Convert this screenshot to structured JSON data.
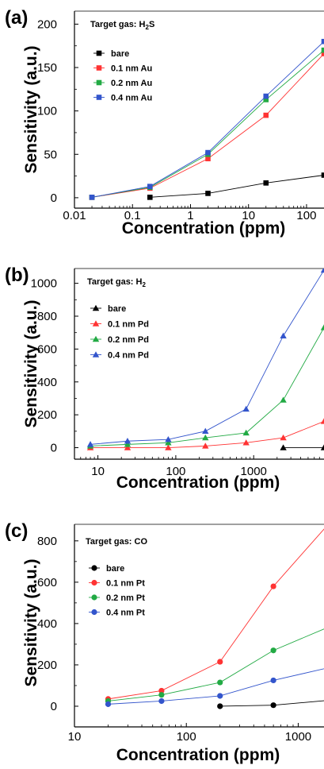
{
  "chart_data": [
    {
      "type": "line",
      "panel_label": "(a)",
      "legend_title": "Target gas: H2S",
      "legend_title_main": "Target gas: H",
      "legend_title_sub": "2",
      "legend_title_tail": "S",
      "xlabel": "Concentration (ppm)",
      "ylabel": "Sensitivity (a.u.)",
      "xscale": "log",
      "xlim": [
        0.01,
        200
      ],
      "ylim": [
        -12,
        215
      ],
      "xticks": [
        0.01,
        0.1,
        1,
        10,
        100
      ],
      "xtick_labels": [
        "0.01",
        "0.1",
        "1",
        "10",
        "100"
      ],
      "yticks": [
        0,
        50,
        100,
        150,
        200
      ],
      "ytick_labels": [
        "0",
        "50",
        "100",
        "150",
        "200"
      ],
      "marker": "square",
      "series": [
        {
          "name": "bare",
          "color": "#000000",
          "x": [
            0.2,
            2,
            20,
            200
          ],
          "y": [
            0.5,
            5,
            17,
            26
          ]
        },
        {
          "name": "0.1 nm Au",
          "color": "#ff3333",
          "x": [
            0.02,
            0.2,
            2,
            20,
            200
          ],
          "y": [
            0.5,
            11,
            45,
            95,
            166
          ]
        },
        {
          "name": "0.2 nm Au",
          "color": "#22aa44",
          "x": [
            0.02,
            0.2,
            2,
            20,
            200
          ],
          "y": [
            0.5,
            12,
            50,
            113,
            170
          ]
        },
        {
          "name": "0.4 nm Au",
          "color": "#3355cc",
          "x": [
            0.02,
            0.2,
            2,
            20,
            200
          ],
          "y": [
            0.5,
            13,
            52,
            117,
            180
          ]
        }
      ]
    },
    {
      "type": "line",
      "panel_label": "(b)",
      "legend_title": "Target gas: H2",
      "legend_title_main": "Target gas: H",
      "legend_title_sub": "2",
      "legend_title_tail": "",
      "xlabel": "Concentration (ppm)",
      "ylabel": "Sensitivity (a.u.)",
      "xscale": "log",
      "xlim": [
        5,
        8000
      ],
      "ylim": [
        -70,
        1090
      ],
      "xticks": [
        10,
        100,
        1000
      ],
      "xtick_labels": [
        "10",
        "100",
        "1000"
      ],
      "yticks": [
        0,
        200,
        400,
        600,
        800,
        1000
      ],
      "ytick_labels": [
        "0",
        "200",
        "400",
        "600",
        "800",
        "1000"
      ],
      "marker": "triangle",
      "series": [
        {
          "name": "bare",
          "color": "#000000",
          "x": [
            2400,
            8000
          ],
          "y": [
            0,
            0
          ]
        },
        {
          "name": "0.1 nm Pd",
          "color": "#ff3333",
          "x": [
            8,
            24,
            80,
            240,
            800,
            2400,
            8000
          ],
          "y": [
            0,
            0,
            0,
            10,
            30,
            60,
            160
          ]
        },
        {
          "name": "0.2 nm Pd",
          "color": "#22aa44",
          "x": [
            8,
            24,
            80,
            240,
            800,
            2400,
            8000
          ],
          "y": [
            10,
            20,
            30,
            60,
            90,
            290,
            730
          ]
        },
        {
          "name": "0.4 nm Pd",
          "color": "#3355cc",
          "x": [
            8,
            24,
            80,
            240,
            800,
            2400,
            8000
          ],
          "y": [
            20,
            40,
            50,
            100,
            235,
            680,
            1080
          ]
        }
      ]
    },
    {
      "type": "line",
      "panel_label": "(c)",
      "legend_title": "Target gas: CO",
      "legend_title_main": "Target gas: CO",
      "legend_title_sub": "",
      "legend_title_tail": "",
      "xlabel": "Concentration (ppm)",
      "ylabel": "Sensitivity (a.u.)",
      "xscale": "log",
      "xlim": [
        10,
        1700
      ],
      "ylim": [
        -100,
        880
      ],
      "xticks": [
        10,
        100,
        1000
      ],
      "xtick_labels": [
        "10",
        "100",
        "1000"
      ],
      "yticks": [
        0,
        200,
        400,
        600,
        800
      ],
      "ytick_labels": [
        "0",
        "200",
        "400",
        "600",
        "800"
      ],
      "marker": "circle",
      "series": [
        {
          "name": "bare",
          "color": "#000000",
          "x": [
            200,
            600,
            2000
          ],
          "y": [
            0,
            5,
            30
          ]
        },
        {
          "name": "0.1 nm Pt",
          "color": "#ff3333",
          "x": [
            20,
            60,
            200,
            600,
            2000
          ],
          "y": [
            35,
            75,
            215,
            580,
            900
          ]
        },
        {
          "name": "0.2 nm Pt",
          "color": "#22aa44",
          "x": [
            20,
            60,
            200,
            600,
            2000
          ],
          "y": [
            25,
            55,
            115,
            270,
            390
          ]
        },
        {
          "name": "0.4 nm Pt",
          "color": "#3355cc",
          "x": [
            20,
            60,
            200,
            600,
            2000
          ],
          "y": [
            10,
            25,
            50,
            125,
            190
          ]
        }
      ]
    }
  ]
}
